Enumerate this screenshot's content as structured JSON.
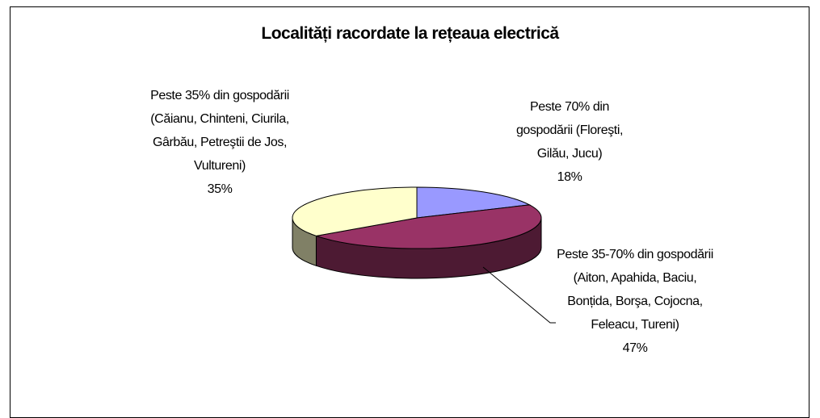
{
  "chart_data": {
    "type": "pie",
    "title": "Localități racordate la rețeaua electrică",
    "categories": [
      "Peste 70% din gospodării (Floreşti, Gilău, Jucu)",
      "Peste 35-70% din gospodării (Aiton, Apahida, Baciu, Bonțida, Borşa, Cojocna, Feleacu, Tureni)",
      "Peste 35% din gospodării (Căianu, Chinteni, Ciurila, Gârbău, Petreştii de Jos, Vultureni)"
    ],
    "values": [
      18,
      47,
      35
    ],
    "value_labels": [
      "18%",
      "47%",
      "35%"
    ],
    "colors": [
      "#9999ff",
      "#993366",
      "#ffffcc"
    ],
    "side_colors": [
      "#4d4d80",
      "#4d1a33",
      "#808066"
    ]
  }
}
